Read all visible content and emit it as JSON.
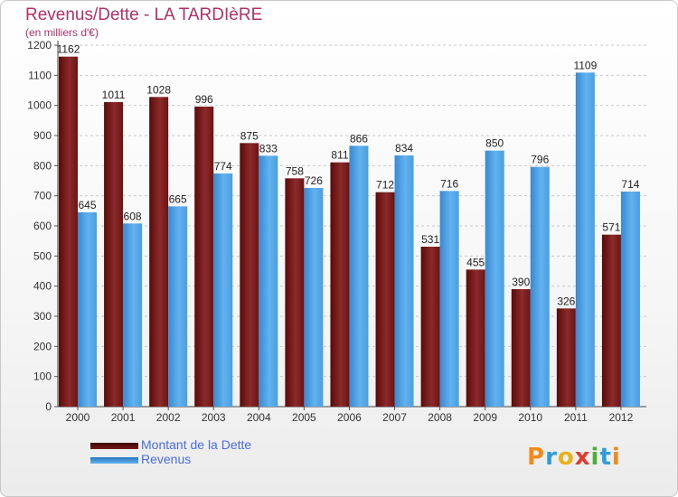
{
  "header": {
    "title": "Revenus/Dette - LA TARDIèRE",
    "subtitle": "(en milliers d'€)"
  },
  "chart_data": {
    "type": "bar",
    "title": "Revenus/Dette - LA TARDIèRE",
    "subtitle": "(en milliers d'€)",
    "categories": [
      "2000",
      "2001",
      "2002",
      "2003",
      "2004",
      "2005",
      "2006",
      "2007",
      "2008",
      "2009",
      "2010",
      "2011",
      "2012"
    ],
    "series": [
      {
        "name": "Montant de la Dette",
        "color": "#7a1a1a",
        "values": [
          1162,
          1011,
          1028,
          996,
          875,
          758,
          811,
          712,
          531,
          455,
          390,
          326,
          571
        ]
      },
      {
        "name": "Revenus",
        "color": "#4a9ee0",
        "values": [
          645,
          608,
          665,
          774,
          833,
          726,
          866,
          834,
          716,
          850,
          796,
          1109,
          714
        ]
      }
    ],
    "ylim": [
      0,
      1200
    ],
    "yticks": [
      0,
      100,
      200,
      300,
      400,
      500,
      600,
      700,
      800,
      900,
      1000,
      1100,
      1200
    ],
    "grid": true,
    "legend_position": "bottom-left"
  },
  "legend": {
    "items": [
      {
        "label": "Montant de la Dette",
        "color": "#6b0f0f"
      },
      {
        "label": "Revenus",
        "color": "#4a9ee0"
      }
    ]
  },
  "brand": {
    "text": "Proxiti",
    "letters": [
      {
        "ch": "P",
        "color": "#f08a1c"
      },
      {
        "ch": "r",
        "color": "#2f9ed8"
      },
      {
        "ch": "o",
        "color": "#e8b21c"
      },
      {
        "ch": "x",
        "color": "#e03a2c"
      },
      {
        "ch": "i",
        "color": "#4caf3a"
      },
      {
        "ch": "t",
        "color": "#2f9ed8"
      },
      {
        "ch": "i",
        "color": "#f08a1c"
      }
    ]
  }
}
